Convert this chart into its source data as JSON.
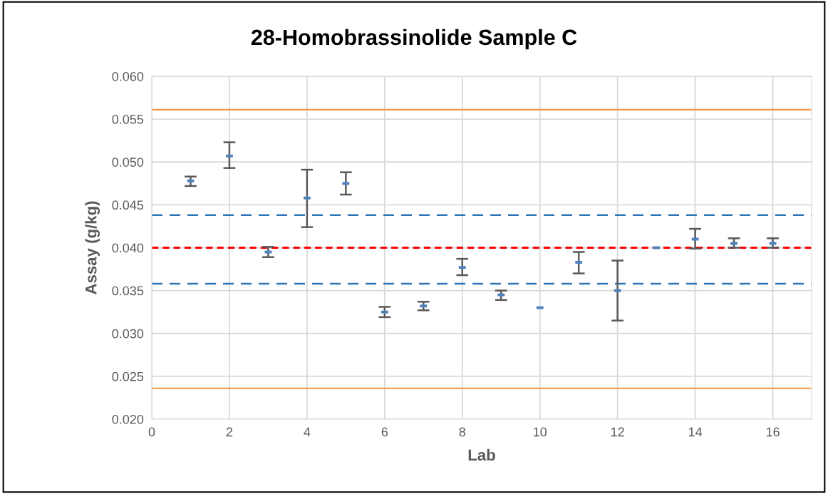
{
  "chart_data": {
    "type": "scatter",
    "title": "28-Homobrassinolide Sample C",
    "xlabel": "Lab",
    "ylabel": "Assay (g/kg)",
    "x": [
      1,
      2,
      3,
      4,
      5,
      6,
      7,
      8,
      9,
      10,
      11,
      12,
      13,
      14,
      15,
      16
    ],
    "series": [
      {
        "color": "#4f81bd",
        "values": [
          0.0478,
          0.0507,
          0.0395,
          0.0458,
          0.0475,
          0.0325,
          0.0332,
          0.0377,
          0.0345,
          0.033,
          0.0383,
          0.035,
          0.04,
          0.041,
          0.0405,
          0.0405
        ],
        "errors": [
          [
            0.0472,
            0.0483
          ],
          [
            0.0493,
            0.0523
          ],
          [
            0.0389,
            0.0401
          ],
          [
            0.0424,
            0.0491
          ],
          [
            0.0462,
            0.0488
          ],
          [
            0.0319,
            0.0331
          ],
          [
            0.0327,
            0.0337
          ],
          [
            0.0368,
            0.0387
          ],
          [
            0.0339,
            0.035
          ],
          null,
          [
            0.037,
            0.0395
          ],
          [
            0.0315,
            0.0385
          ],
          null,
          [
            0.0399,
            0.0422
          ],
          [
            0.04,
            0.0411
          ],
          [
            0.04,
            0.0411
          ]
        ]
      }
    ],
    "xlim": [
      0,
      17
    ],
    "xticks": [
      0,
      2,
      4,
      6,
      8,
      10,
      12,
      14,
      16
    ],
    "ylim": [
      0.02,
      0.06
    ],
    "yticks": [
      {
        "value": 0.02,
        "label": "0.020"
      },
      {
        "value": 0.025,
        "label": "0.025"
      },
      {
        "value": 0.03,
        "label": "0.030"
      },
      {
        "value": 0.035,
        "label": "0.035"
      },
      {
        "value": 0.04,
        "label": "0.040"
      },
      {
        "value": 0.045,
        "label": "0.045"
      },
      {
        "value": 0.05,
        "label": "0.050"
      },
      {
        "value": 0.055,
        "label": "0.055"
      },
      {
        "value": 0.06,
        "label": "0.060"
      }
    ],
    "ref_lines": [
      {
        "axis": "y",
        "value": 0.0561,
        "color": "#f79646",
        "line_style": "solid"
      },
      {
        "axis": "y",
        "value": 0.0236,
        "color": "#f79646",
        "line_style": "solid"
      },
      {
        "axis": "y",
        "value": 0.0438,
        "color": "#2e75b6",
        "line_style": "dashed"
      },
      {
        "axis": "y",
        "value": 0.0358,
        "color": "#2e75b6",
        "line_style": "dashed"
      },
      {
        "axis": "y",
        "value": 0.04,
        "color": "#ff0000",
        "line_style": "dotted"
      }
    ],
    "grid": true
  }
}
